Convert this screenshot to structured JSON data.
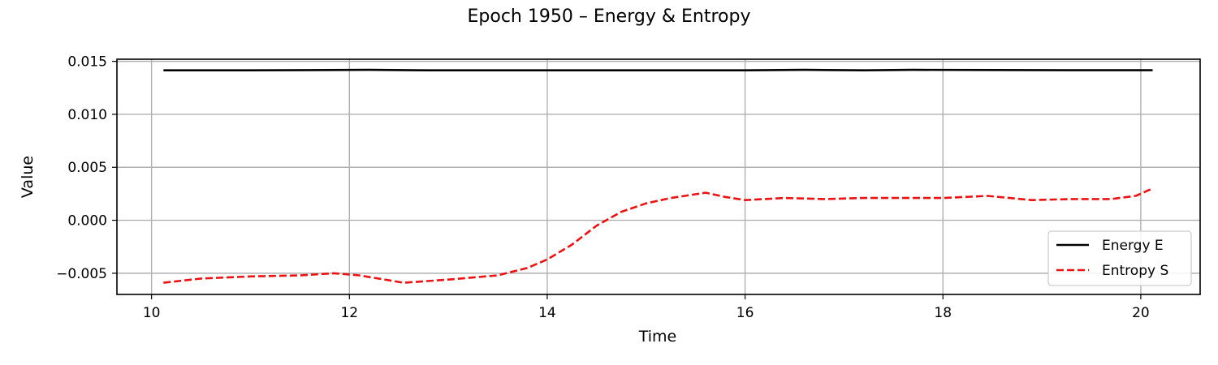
{
  "chart_data": {
    "type": "line",
    "title": "Epoch 1950 – Energy & Entropy",
    "xlabel": "Time",
    "ylabel": "Value",
    "xlim": [
      9.65,
      20.6
    ],
    "ylim": [
      -0.007,
      0.0152
    ],
    "xticks": [
      10,
      12,
      14,
      16,
      18,
      20
    ],
    "xtick_labels": [
      "10",
      "12",
      "14",
      "16",
      "18",
      "20"
    ],
    "yticks": [
      -0.005,
      0.0,
      0.005,
      0.01,
      0.015
    ],
    "ytick_labels": [
      "−0.005",
      "0.000",
      "0.005",
      "0.010",
      "0.015"
    ],
    "grid": true,
    "legend_position": "lower right",
    "series": [
      {
        "name": "Energy E",
        "color": "#000000",
        "style": "solid",
        "x": [
          10.12,
          11.0,
          12.2,
          12.8,
          14.0,
          15.0,
          16.0,
          16.6,
          17.2,
          17.7,
          18.5,
          19.3,
          20.12
        ],
        "y": [
          0.01415,
          0.01415,
          0.0142,
          0.01415,
          0.01415,
          0.01415,
          0.01415,
          0.0142,
          0.01415,
          0.0142,
          0.01418,
          0.01416,
          0.01416
        ]
      },
      {
        "name": "Entropy S",
        "color": "#ee1111",
        "style": "dashed",
        "x": [
          10.12,
          10.5,
          11.0,
          11.5,
          11.85,
          12.1,
          12.55,
          13.0,
          13.5,
          13.8,
          14.0,
          14.25,
          14.5,
          14.75,
          15.0,
          15.25,
          15.6,
          15.8,
          16.0,
          16.4,
          16.8,
          17.2,
          17.6,
          18.0,
          18.45,
          18.9,
          19.3,
          19.7,
          19.95,
          20.12
        ],
        "y": [
          -0.0059,
          -0.0055,
          -0.0053,
          -0.0052,
          -0.005,
          -0.0052,
          -0.0059,
          -0.0056,
          -0.0052,
          -0.0045,
          -0.0037,
          -0.0023,
          -0.0005,
          0.0008,
          0.0016,
          0.0021,
          0.0026,
          0.0022,
          0.0019,
          0.0021,
          0.002,
          0.0021,
          0.0021,
          0.0021,
          0.0023,
          0.0019,
          0.002,
          0.002,
          0.0023,
          0.003
        ]
      }
    ]
  }
}
